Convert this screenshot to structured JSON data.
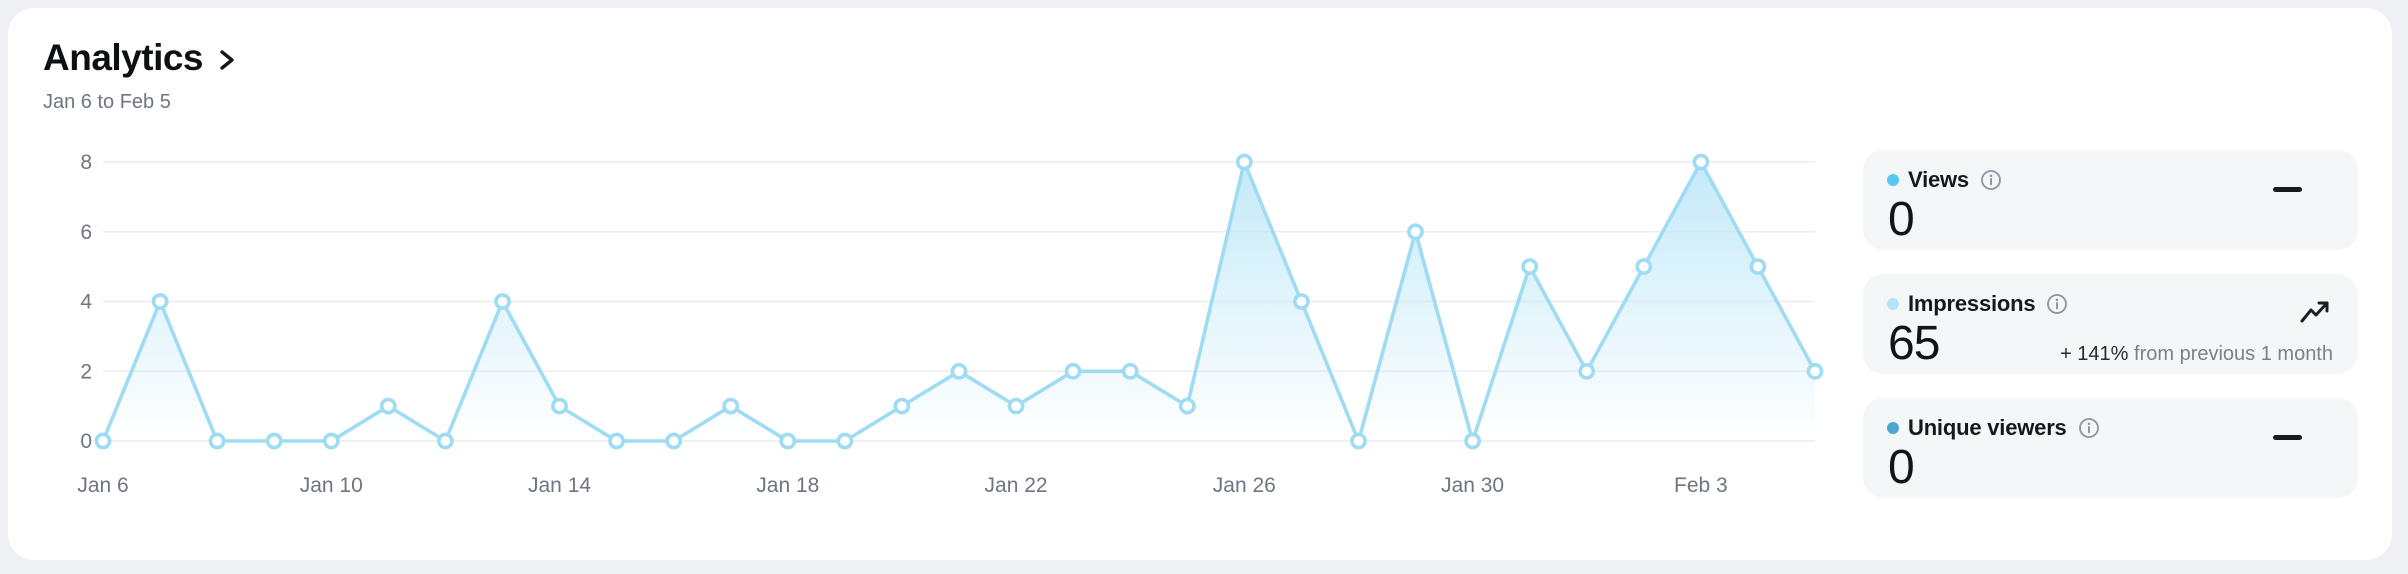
{
  "header": {
    "title": "Analytics",
    "date_range": "Jan 6 to Feb 5"
  },
  "chart_data": {
    "type": "area",
    "title": "",
    "xlabel": "",
    "ylabel": "",
    "x": [
      "Jan 6",
      "Jan 7",
      "Jan 8",
      "Jan 9",
      "Jan 10",
      "Jan 11",
      "Jan 12",
      "Jan 13",
      "Jan 14",
      "Jan 15",
      "Jan 16",
      "Jan 17",
      "Jan 18",
      "Jan 19",
      "Jan 20",
      "Jan 21",
      "Jan 22",
      "Jan 23",
      "Jan 24",
      "Jan 25",
      "Jan 26",
      "Jan 27",
      "Jan 28",
      "Jan 29",
      "Jan 30",
      "Jan 31",
      "Feb 1",
      "Feb 2",
      "Feb 3",
      "Feb 4",
      "Feb 5"
    ],
    "values": [
      0,
      4,
      0,
      0,
      0,
      1,
      0,
      4,
      1,
      0,
      0,
      1,
      0,
      0,
      1,
      2,
      1,
      2,
      2,
      1,
      8,
      4,
      0,
      6,
      0,
      5,
      2,
      5,
      8,
      5,
      2
    ],
    "x_tick_labels": [
      "Jan 6",
      "Jan 10",
      "Jan 14",
      "Jan 18",
      "Jan 22",
      "Jan 26",
      "Jan 30",
      "Feb 3"
    ],
    "x_tick_every": 4,
    "yticks": [
      0,
      2,
      4,
      6,
      8
    ],
    "ylim": [
      0,
      8
    ],
    "grid": true,
    "legend_position": "none",
    "line_color": "#9fdcf4",
    "marker_fill": "#ffffff",
    "area_fill_top": "rgba(186,230,248,0.85)",
    "area_fill_bottom": "rgba(186,230,248,0)",
    "gridline_color": "#eaecef",
    "tick_color": "#6e7581"
  },
  "metrics": [
    {
      "label": "Views",
      "value": "0",
      "dot_color": "#58c7f1",
      "trend": "flat",
      "trend_icon": "dash-icon",
      "info_icon": "info-icon"
    },
    {
      "label": "Impressions",
      "value": "65",
      "dot_color": "#b0e4f7",
      "trend": "up",
      "trend_icon": "trending-up-icon",
      "info_icon": "info-icon",
      "delta": "+ 141%",
      "delta_note": "from previous 1 month"
    },
    {
      "label": "Unique viewers",
      "value": "0",
      "dot_color": "#4ba6cb",
      "trend": "flat",
      "trend_icon": "dash-icon",
      "info_icon": "info-icon"
    }
  ],
  "icons": {
    "title_chevron": "chevron-right-icon",
    "info": "info-icon",
    "flat": "dash-icon",
    "up": "trending-up-icon"
  }
}
